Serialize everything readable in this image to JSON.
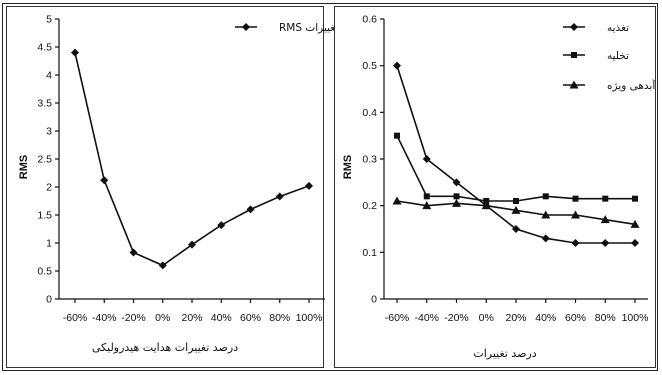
{
  "chart_data": [
    {
      "type": "line",
      "title": "",
      "xlabel": "درصد تغییرات هدایت هیدرولیکی",
      "ylabel": "RMS",
      "categories": [
        "-60%",
        "-40%",
        "-20%",
        "0%",
        "20%",
        "40%",
        "60%",
        "80%",
        "100%"
      ],
      "ylim": [
        0,
        5
      ],
      "yticks": [
        "0",
        "0.5",
        "1",
        "1.5",
        "2",
        "2.5",
        "3",
        "3.5",
        "4",
        "4.5",
        "5"
      ],
      "grid": false,
      "legend_position": "top-right",
      "series": [
        {
          "name": "تغییرات RMS",
          "marker": "diamond",
          "values": [
            4.4,
            2.12,
            0.83,
            0.6,
            0.97,
            1.32,
            1.6,
            1.83,
            2.02
          ]
        }
      ]
    },
    {
      "type": "line",
      "title": "",
      "xlabel": "درصد تغییرات",
      "ylabel": "RMS",
      "categories": [
        "-60%",
        "-40%",
        "-20%",
        "0%",
        "20%",
        "40%",
        "60%",
        "80%",
        "100%"
      ],
      "ylim": [
        0,
        0.6
      ],
      "yticks": [
        "0",
        "0.1",
        "0.2",
        "0.3",
        "0.4",
        "0.5",
        "0.6"
      ],
      "grid": false,
      "legend_position": "top-right",
      "series": [
        {
          "name": "تغذیه",
          "marker": "diamond",
          "values": [
            0.5,
            0.3,
            0.25,
            0.2,
            0.15,
            0.13,
            0.12,
            0.12,
            0.12
          ]
        },
        {
          "name": "تخلیه",
          "marker": "square",
          "values": [
            0.35,
            0.22,
            0.22,
            0.21,
            0.21,
            0.22,
            0.215,
            0.215,
            0.215
          ]
        },
        {
          "name": "آبدهی ویژه",
          "marker": "triangle",
          "values": [
            0.21,
            0.2,
            0.205,
            0.2,
            0.19,
            0.18,
            0.18,
            0.17,
            0.16
          ]
        }
      ]
    }
  ]
}
